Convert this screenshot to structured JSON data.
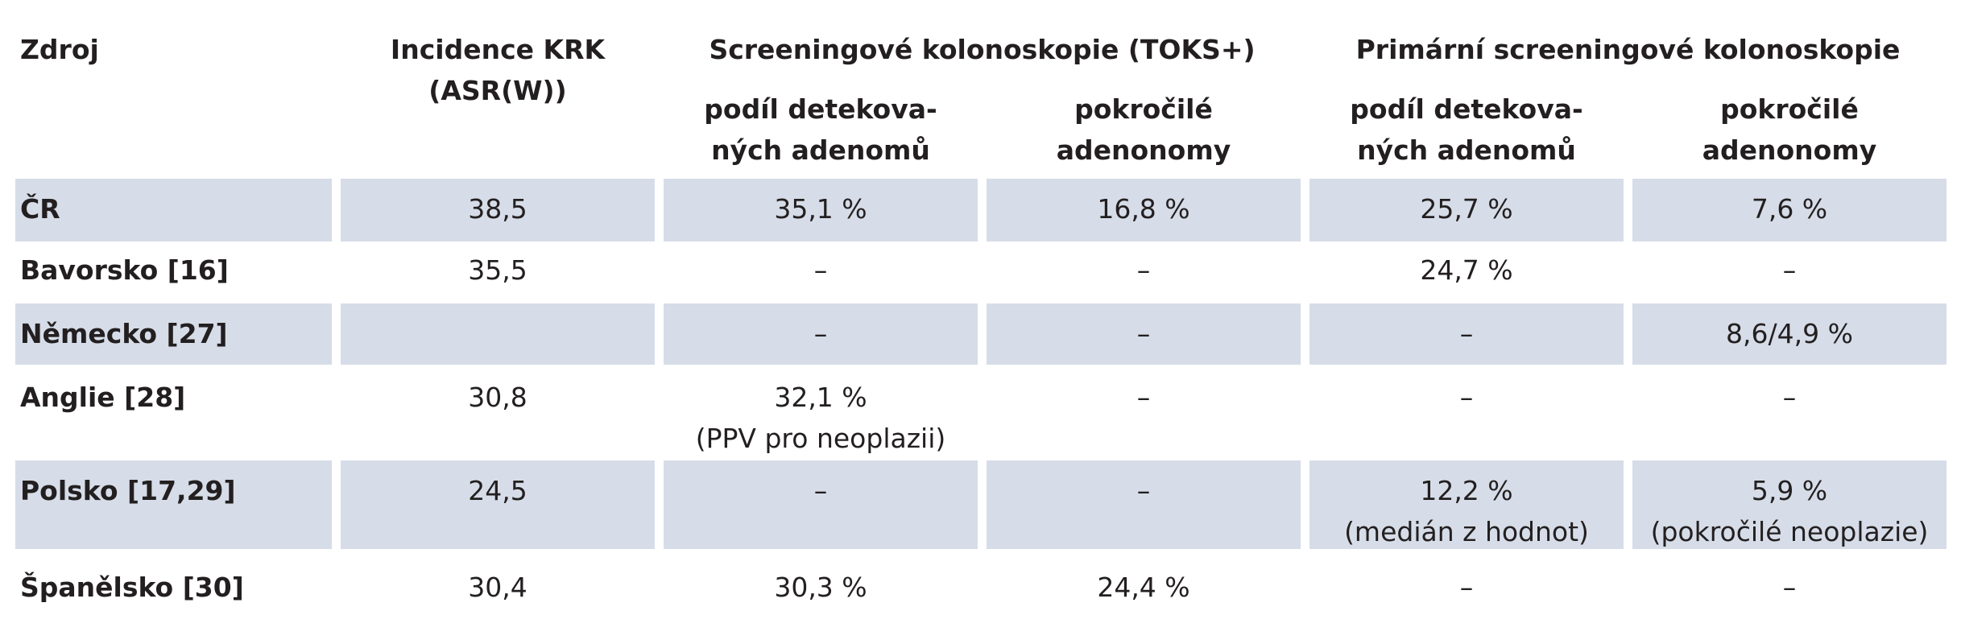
{
  "table": {
    "header": {
      "source": "Zdroj",
      "incidence": [
        "Incidence KRK",
        "(ASR(W))"
      ],
      "groups": [
        "Screeningové kolonoskopie (TOKS+)",
        "Primární screeningové kolonoskopie"
      ],
      "subheaders": [
        [
          "podíl detekova-",
          "ných adenomů"
        ],
        [
          "pokročilé",
          "adenonomy"
        ],
        [
          "podíl detekova-",
          "ných adenomů"
        ],
        [
          "pokročilé",
          "adenonomy"
        ]
      ]
    },
    "rows": [
      [
        "ČR",
        "38,5",
        "35,1 %",
        "16,8 %",
        "25,7 %",
        "7,6 %"
      ],
      [
        "Bavorsko [16]",
        "35,5",
        "–",
        "–",
        "24,7 %",
        "–"
      ],
      [
        "Německo [27]",
        null,
        "–",
        "–",
        "–",
        "8,6/4,9 %"
      ],
      [
        "Anglie [28]",
        "30,8",
        [
          "32,1 %",
          "(PPV pro neoplazii)"
        ],
        "–",
        "–",
        "–"
      ],
      [
        "Polsko [17,29]",
        "24,5",
        "–",
        "–",
        [
          "12,2 %",
          "(medián z hodnot)"
        ],
        [
          "5,9 %",
          "(pokročilé neoplazie)"
        ]
      ],
      [
        "Španělsko [30]",
        "30,4",
        "30,3 %",
        "24,4 %",
        "–",
        "–"
      ]
    ]
  }
}
